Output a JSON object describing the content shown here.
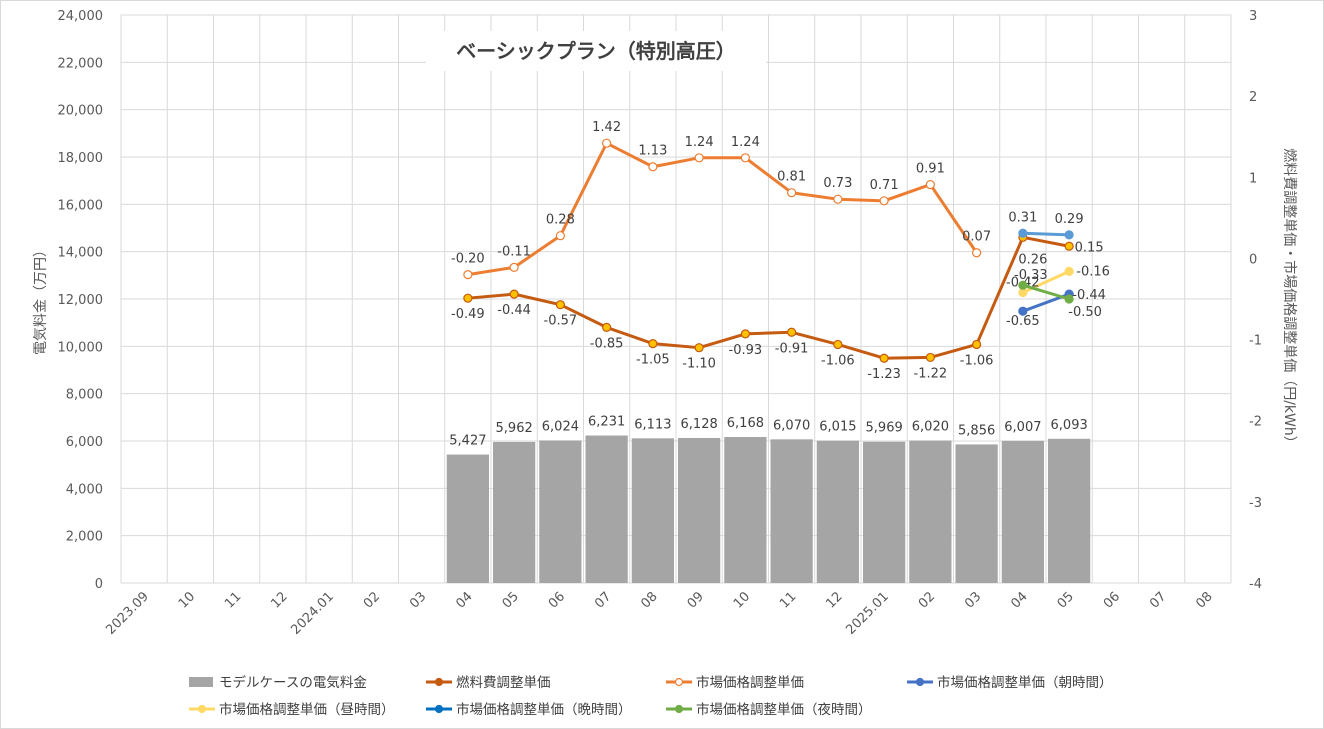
{
  "chart_data": {
    "type": "bar+line",
    "title": "ベーシックプラン（特別高圧）",
    "ylabel_left": "電気料金（万円）",
    "ylabel_right": "燃料費調整単価・市場価格調整単価（円/kWh）",
    "ylim_left": [
      0,
      24000
    ],
    "ylim_right": [
      -4,
      3
    ],
    "yticks_left": [
      "0",
      "2,000",
      "4,000",
      "6,000",
      "8,000",
      "10,000",
      "12,000",
      "14,000",
      "16,000",
      "18,000",
      "20,000",
      "22,000",
      "24,000"
    ],
    "yticks_right": [
      "-4",
      "-3",
      "-2",
      "-1",
      "0",
      "1",
      "2",
      "3"
    ],
    "categories": [
      "2023.09",
      "10",
      "11",
      "12",
      "2024.01",
      "02",
      "03",
      "04",
      "05",
      "06",
      "07",
      "08",
      "09",
      "10",
      "11",
      "12",
      "2025.01",
      "02",
      "03",
      "04",
      "05",
      "06",
      "07",
      "08"
    ],
    "grid": true,
    "legend_position": "bottom",
    "series": [
      {
        "name": "モデルケースの電気料金",
        "type": "bar",
        "axis": "left",
        "color": "#a5a5a5",
        "values": [
          null,
          null,
          null,
          null,
          null,
          null,
          null,
          5427,
          5962,
          6024,
          6231,
          6113,
          6128,
          6168,
          6070,
          6015,
          5969,
          6020,
          5856,
          6007,
          6093,
          null,
          null,
          null
        ],
        "labels": [
          null,
          null,
          null,
          null,
          null,
          null,
          null,
          "5,427",
          "5,962",
          "6,024",
          "6,231",
          "6,113",
          "6,128",
          "6,168",
          "6,070",
          "6,015",
          "5,969",
          "6,020",
          "5,856",
          "6,007",
          "6,093",
          null,
          null,
          null
        ]
      },
      {
        "name": "燃料費調整単価",
        "type": "line",
        "axis": "right",
        "color": "#c55a11",
        "marker_fill": "#ffc000",
        "label_pos": "below",
        "values": [
          null,
          null,
          null,
          null,
          null,
          null,
          null,
          -0.49,
          -0.44,
          -0.57,
          -0.85,
          -1.05,
          -1.1,
          -0.93,
          -0.91,
          -1.06,
          -1.23,
          -1.22,
          -1.06,
          0.26,
          0.15,
          null,
          null,
          null
        ],
        "labels": [
          null,
          null,
          null,
          null,
          null,
          null,
          null,
          "-0.49",
          "-0.44",
          "-0.57",
          "-0.85",
          "-1.05",
          "-1.10",
          "-0.93",
          "-0.91",
          "-1.06",
          "-1.23",
          "-1.22",
          "-1.06",
          "0.26",
          "0.15",
          null,
          null,
          null
        ]
      },
      {
        "name": "市場価格調整単価",
        "type": "line",
        "axis": "right",
        "color": "#ed7d31",
        "marker_fill": "#ffffff",
        "label_pos": "above",
        "values": [
          null,
          null,
          null,
          null,
          null,
          null,
          null,
          -0.2,
          -0.11,
          0.28,
          1.42,
          1.13,
          1.24,
          1.24,
          0.81,
          0.73,
          0.71,
          0.91,
          0.07,
          null,
          null,
          null,
          null,
          null
        ],
        "labels": [
          null,
          null,
          null,
          null,
          null,
          null,
          null,
          "-0.20",
          "-0.11",
          "0.28",
          "1.42",
          "1.13",
          "1.24",
          "1.24",
          "0.81",
          "0.73",
          "0.71",
          "0.91",
          "0.07",
          null,
          null,
          null,
          null,
          null
        ]
      },
      {
        "name": "市場価格調整単価（朝時間）",
        "type": "line",
        "axis": "right",
        "color": "#4472c4",
        "marker_fill": "#4472c4",
        "values": [
          null,
          null,
          null,
          null,
          null,
          null,
          null,
          null,
          null,
          null,
          null,
          null,
          null,
          null,
          null,
          null,
          null,
          null,
          null,
          -0.65,
          -0.44,
          null,
          null,
          null
        ],
        "labels": [
          null,
          null,
          null,
          null,
          null,
          null,
          null,
          null,
          null,
          null,
          null,
          null,
          null,
          null,
          null,
          null,
          null,
          null,
          null,
          "-0.65",
          "-0.44",
          null,
          null,
          null
        ]
      },
      {
        "name": "市場価格調整単価（昼時間）",
        "type": "line",
        "axis": "right",
        "color": "#ffd966",
        "marker_fill": "#ffd966",
        "values": [
          null,
          null,
          null,
          null,
          null,
          null,
          null,
          null,
          null,
          null,
          null,
          null,
          null,
          null,
          null,
          null,
          null,
          null,
          null,
          -0.42,
          -0.16,
          null,
          null,
          null
        ],
        "labels": [
          null,
          null,
          null,
          null,
          null,
          null,
          null,
          null,
          null,
          null,
          null,
          null,
          null,
          null,
          null,
          null,
          null,
          null,
          null,
          "-0.42",
          "-0.16",
          null,
          null,
          null
        ]
      },
      {
        "name": "市場価格調整単価（晩時間）",
        "type": "line",
        "axis": "right",
        "color": "#5b9bd5",
        "marker_fill": "#5b9bd5",
        "values": [
          null,
          null,
          null,
          null,
          null,
          null,
          null,
          null,
          null,
          null,
          null,
          null,
          null,
          null,
          null,
          null,
          null,
          null,
          null,
          0.31,
          0.29,
          null,
          null,
          null
        ],
        "labels": [
          null,
          null,
          null,
          null,
          null,
          null,
          null,
          null,
          null,
          null,
          null,
          null,
          null,
          null,
          null,
          null,
          null,
          null,
          null,
          "0.31",
          "0.29",
          null,
          null,
          null
        ]
      },
      {
        "name": "市場価格調整単価（夜時間）",
        "type": "line",
        "axis": "right",
        "color": "#70ad47",
        "marker_fill": "#70ad47",
        "values": [
          null,
          null,
          null,
          null,
          null,
          null,
          null,
          null,
          null,
          null,
          null,
          null,
          null,
          null,
          null,
          null,
          null,
          null,
          null,
          -0.33,
          -0.5,
          null,
          null,
          null
        ],
        "labels": [
          null,
          null,
          null,
          null,
          null,
          null,
          null,
          null,
          null,
          null,
          null,
          null,
          null,
          null,
          null,
          null,
          null,
          null,
          null,
          "-0.33",
          "-0.50",
          null,
          null,
          null
        ]
      }
    ],
    "legend_marker_colors": {
      "bar": "#a5a5a5",
      "fuel": "#c55a11",
      "market": "#ed7d31",
      "morning": "#4472c4",
      "day": "#ffd966",
      "evening": "#0070c0",
      "night": "#70ad47"
    }
  }
}
